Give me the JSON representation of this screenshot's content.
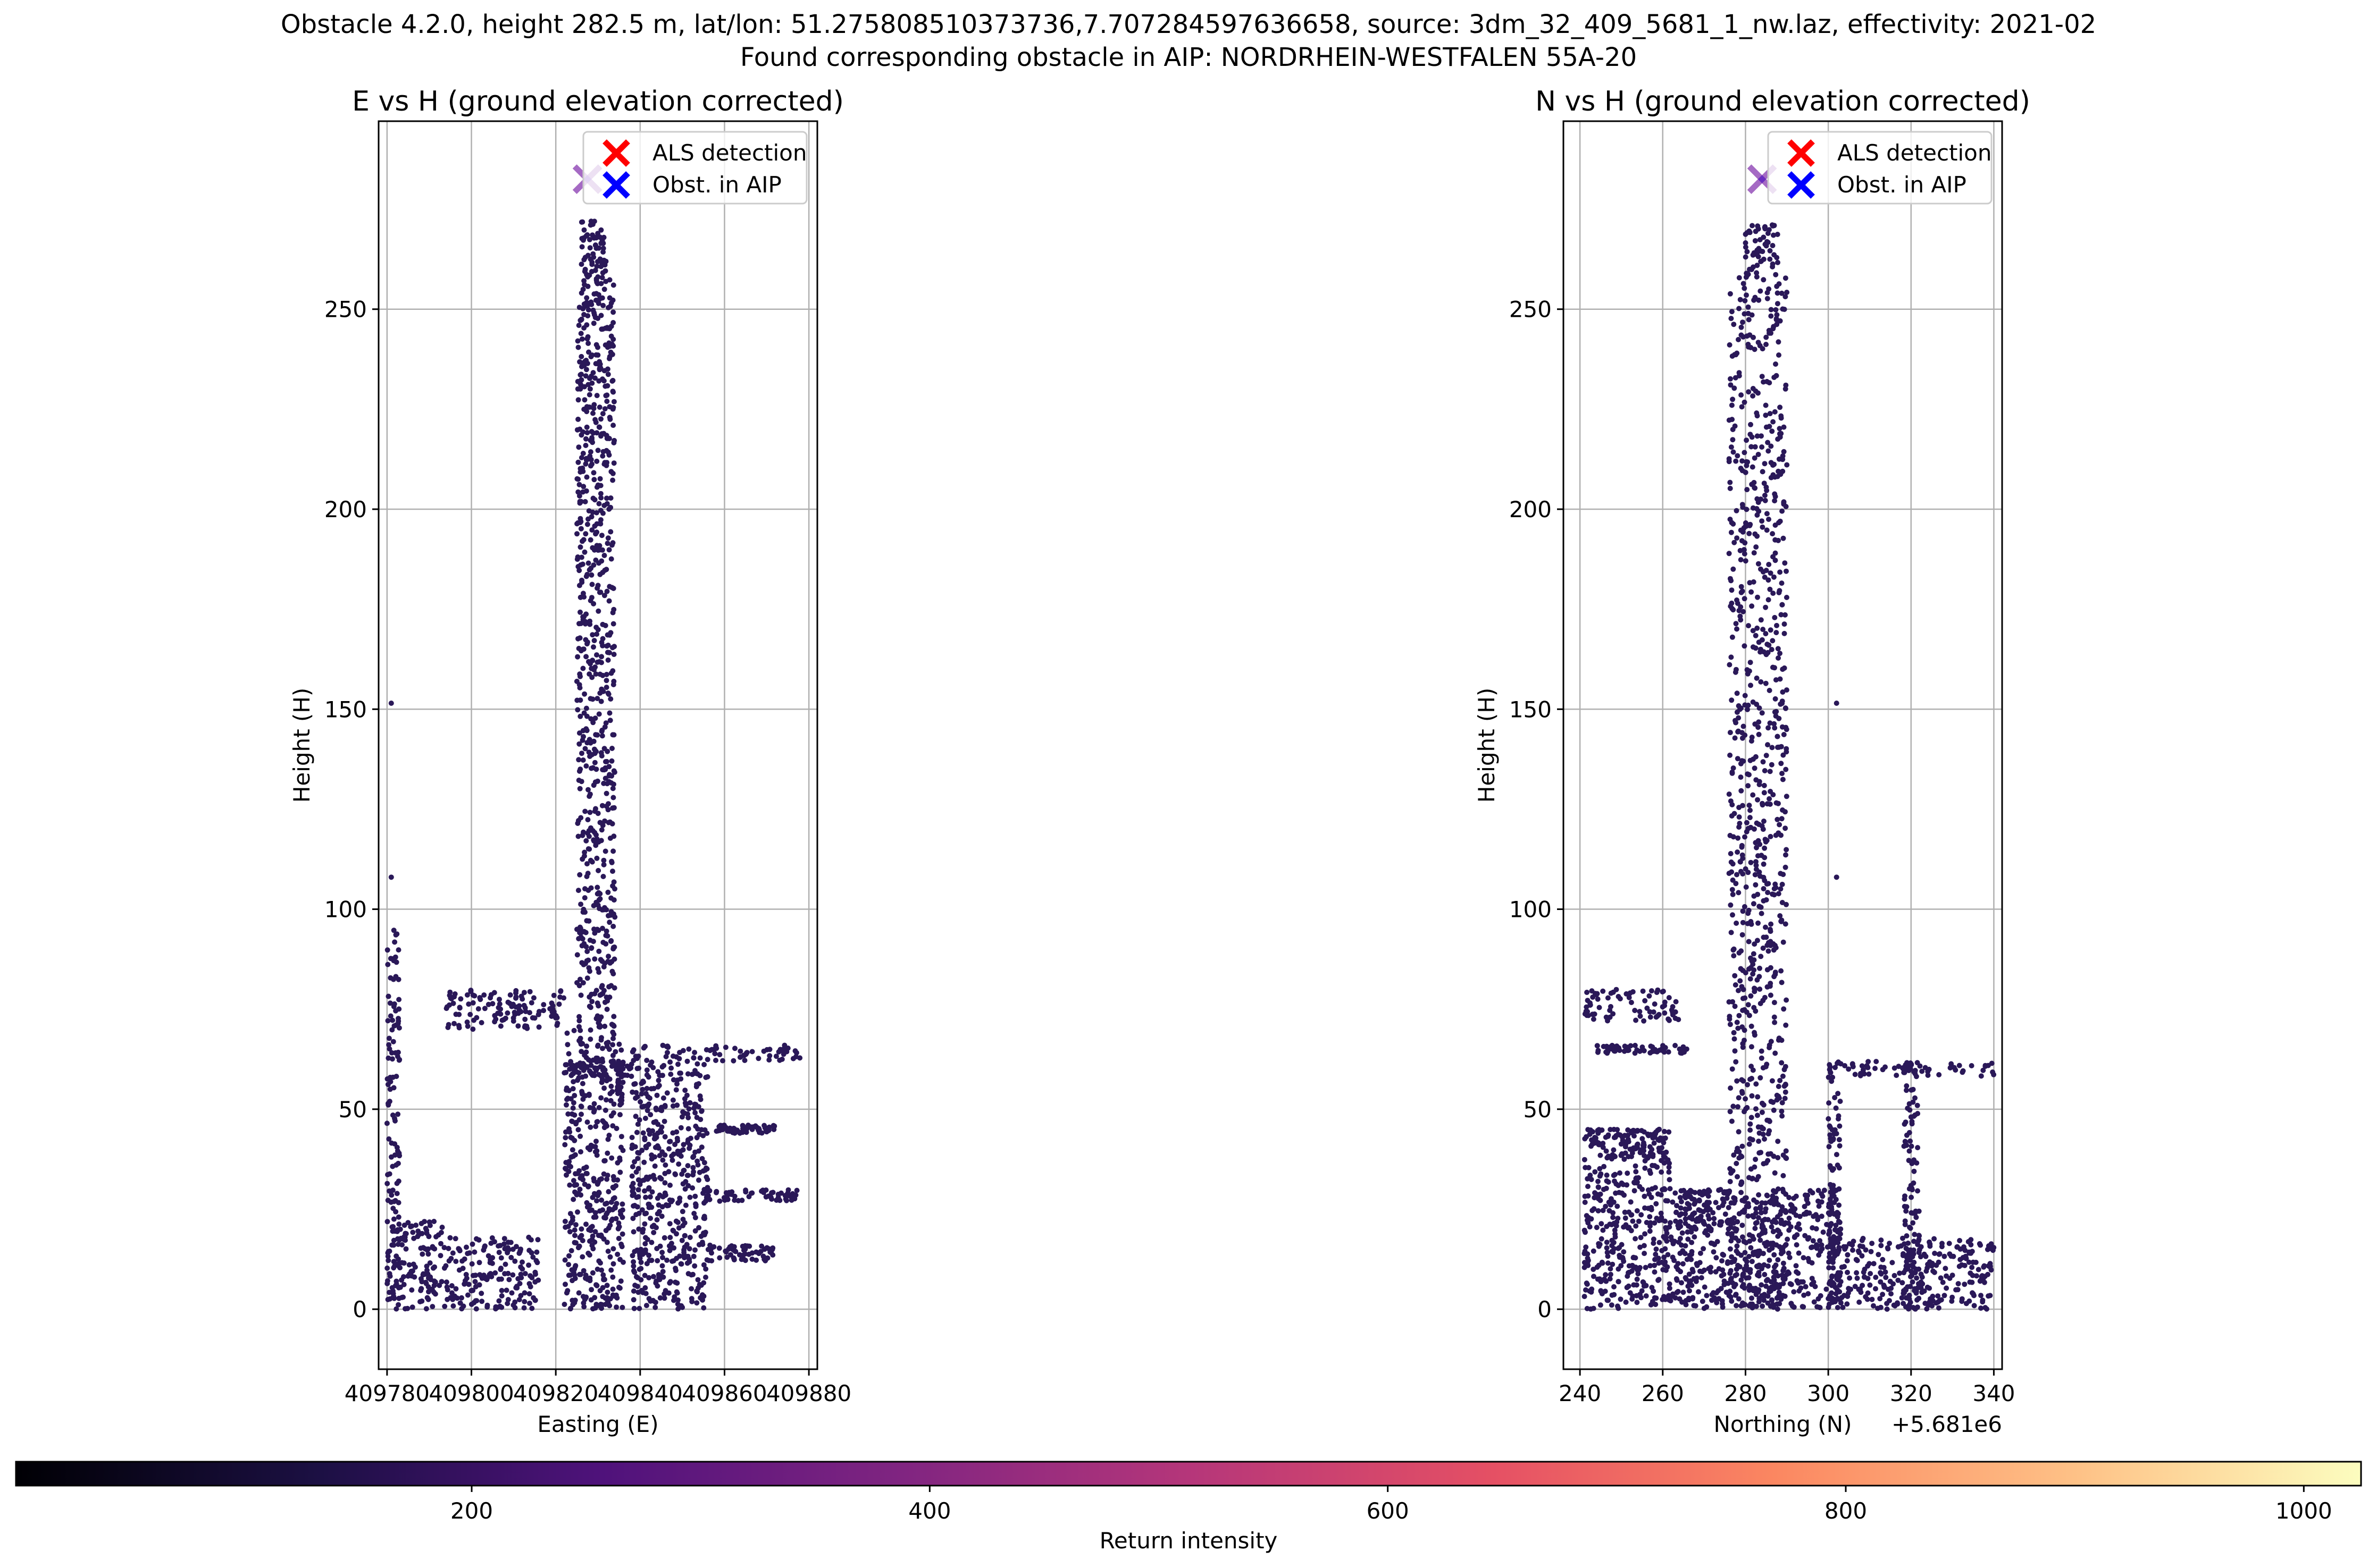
{
  "figure": {
    "title_line1": "Obstacle 4.2.0, height 282.5 m, lat/lon: 51.275808510373736,7.707284597636658, source: 3dm_32_409_5681_1_nw.laz, effectivity: 2021-02",
    "title_line2": "Found corresponding obstacle in AIP: NORDRHEIN-WESTFALEN 55A-20"
  },
  "chart_data": [
    {
      "type": "scatter",
      "title": "E vs H (ground elevation corrected)",
      "xlabel": "Easting (E)",
      "ylabel": "Height (H)",
      "xlim": [
        409778,
        409882
      ],
      "ylim": [
        -15,
        297
      ],
      "xticks": [
        409780,
        409800,
        409820,
        409840,
        409860,
        409880
      ],
      "xtick_labels": [
        "409780",
        "409800",
        "409820",
        "409840",
        "409860",
        "409880"
      ],
      "yticks": [
        0,
        50,
        100,
        150,
        200,
        250
      ],
      "ytick_labels": [
        "0",
        "50",
        "100",
        "150",
        "200",
        "250"
      ],
      "x_offset_label": "",
      "grid": true,
      "legend_position": "top-right",
      "legend": [
        {
          "label": "ALS detection",
          "marker": "x",
          "color": "#ff0000"
        },
        {
          "label": "Obst. in AIP",
          "marker": "x",
          "color": "#0000ff"
        }
      ],
      "markers": [
        {
          "series": "ALS detection",
          "x": 409827.5,
          "y": 282.5,
          "color": "#ff0000"
        },
        {
          "series": "Obst. in AIP",
          "x": 409827.5,
          "y": 282.5,
          "color": "#0000ff"
        }
      ],
      "point_color": "#2a1858",
      "regions": [
        {
          "x": [
            409780,
            409794
          ],
          "y": [
            0,
            22
          ]
        },
        {
          "x": [
            409794,
            409816
          ],
          "y": [
            0,
            18
          ]
        },
        {
          "x": [
            409780,
            409783
          ],
          "y": [
            0,
            98
          ]
        },
        {
          "x": [
            409794,
            409822
          ],
          "y": [
            70,
            80
          ]
        },
        {
          "x": [
            409822,
            409836
          ],
          "y": [
            0,
            70
          ]
        },
        {
          "x": [
            409825,
            409834
          ],
          "y": [
            70,
            258
          ]
        },
        {
          "x": [
            409822,
            409838
          ],
          "y": [
            58,
            62
          ]
        },
        {
          "x": [
            409836,
            409878
          ],
          "y": [
            62,
            66
          ]
        },
        {
          "x": [
            409838,
            409856
          ],
          "y": [
            0,
            62
          ]
        },
        {
          "x": [
            409855,
            409878
          ],
          "y": [
            27,
            30
          ]
        },
        {
          "x": [
            409858,
            409872
          ],
          "y": [
            44,
            46
          ]
        },
        {
          "x": [
            409856,
            409872
          ],
          "y": [
            12,
            16
          ]
        },
        {
          "x": [
            409826,
            409832
          ],
          "y": [
            258,
            272
          ]
        }
      ],
      "outliers": [
        {
          "x": 409781,
          "y": 151.5
        },
        {
          "x": 409781,
          "y": 108
        }
      ]
    },
    {
      "type": "scatter",
      "title": "N vs H (ground elevation corrected)",
      "xlabel": "Northing (N)",
      "ylabel": "Height (H)",
      "xlim": [
        5681236,
        5681342
      ],
      "ylim": [
        -15,
        297
      ],
      "xticks": [
        5681240,
        5681260,
        5681280,
        5681300,
        5681320,
        5681340
      ],
      "xtick_labels": [
        "240",
        "260",
        "280",
        "300",
        "320",
        "340"
      ],
      "yticks": [
        0,
        50,
        100,
        150,
        200,
        250
      ],
      "ytick_labels": [
        "0",
        "50",
        "100",
        "150",
        "200",
        "250"
      ],
      "x_offset_label": "+5.681e6",
      "grid": true,
      "legend_position": "top-right",
      "legend": [
        {
          "label": "ALS detection",
          "marker": "x",
          "color": "#ff0000"
        },
        {
          "label": "Obst. in AIP",
          "marker": "x",
          "color": "#0000ff"
        }
      ],
      "markers": [
        {
          "series": "ALS detection",
          "x": 5681284,
          "y": 282.5,
          "color": "#ff0000"
        },
        {
          "series": "Obst. in AIP",
          "x": 5681284,
          "y": 282.5,
          "color": "#0000ff"
        }
      ],
      "point_color": "#2a1858",
      "regions": [
        {
          "x": [
            5681241,
            5681262
          ],
          "y": [
            0,
            45
          ]
        },
        {
          "x": [
            5681241,
            5681264
          ],
          "y": [
            72,
            80
          ]
        },
        {
          "x": [
            5681244,
            5681266
          ],
          "y": [
            64,
            66
          ]
        },
        {
          "x": [
            5681242,
            5681262
          ],
          "y": [
            38,
            45
          ]
        },
        {
          "x": [
            5681262,
            5681276
          ],
          "y": [
            0,
            30
          ]
        },
        {
          "x": [
            5681276,
            5681290
          ],
          "y": [
            0,
            258
          ]
        },
        {
          "x": [
            5681276,
            5681303
          ],
          "y": [
            0,
            30
          ]
        },
        {
          "x": [
            5681300,
            5681340
          ],
          "y": [
            0,
            18
          ]
        },
        {
          "x": [
            5681300,
            5681340
          ],
          "y": [
            58,
            62
          ]
        },
        {
          "x": [
            5681300,
            5681303
          ],
          "y": [
            0,
            62
          ]
        },
        {
          "x": [
            5681318,
            5681322
          ],
          "y": [
            0,
            62
          ]
        },
        {
          "x": [
            5681280,
            5681288
          ],
          "y": [
            258,
            272
          ]
        },
        {
          "x": [
            5681264,
            5681276
          ],
          "y": [
            20,
            30
          ]
        }
      ],
      "outliers": [
        {
          "x": 5681302,
          "y": 151.5
        },
        {
          "x": 5681302,
          "y": 108
        }
      ]
    }
  ],
  "colorbar": {
    "label": "Return intensity",
    "cmap": "magma",
    "range": [
      1,
      1025
    ],
    "ticks": [
      200,
      400,
      600,
      800,
      1000
    ],
    "tick_labels": [
      "200",
      "400",
      "600",
      "800",
      "1000"
    ]
  }
}
